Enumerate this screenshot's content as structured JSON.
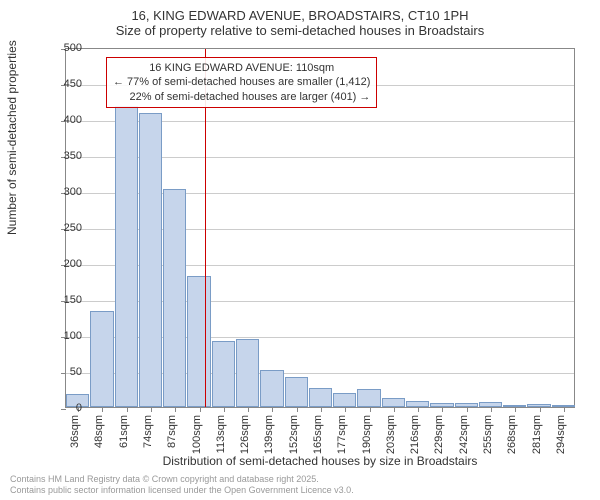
{
  "header": {
    "title": "16, KING EDWARD AVENUE, BROADSTAIRS, CT10 1PH",
    "subtitle": "Size of property relative to semi-detached houses in Broadstairs"
  },
  "chart": {
    "type": "histogram",
    "ylabel": "Number of semi-detached properties",
    "xlabel": "Distribution of semi-detached houses by size in Broadstairs",
    "ylim": [
      0,
      500
    ],
    "ytick_step": 50,
    "bar_fill": "#c6d5eb",
    "bar_stroke": "#7a9cc6",
    "grid_color": "#cccccc",
    "axis_color": "#888888",
    "background_color": "#ffffff",
    "x_start": 36,
    "x_step": 12.903,
    "bars": [
      {
        "label": "36sqm",
        "value": 18
      },
      {
        "label": "48sqm",
        "value": 133
      },
      {
        "label": "61sqm",
        "value": 418
      },
      {
        "label": "74sqm",
        "value": 408
      },
      {
        "label": "87sqm",
        "value": 303
      },
      {
        "label": "100sqm",
        "value": 182
      },
      {
        "label": "113sqm",
        "value": 92
      },
      {
        "label": "126sqm",
        "value": 95
      },
      {
        "label": "139sqm",
        "value": 52
      },
      {
        "label": "152sqm",
        "value": 42
      },
      {
        "label": "165sqm",
        "value": 26
      },
      {
        "label": "177sqm",
        "value": 20
      },
      {
        "label": "190sqm",
        "value": 25
      },
      {
        "label": "203sqm",
        "value": 12
      },
      {
        "label": "216sqm",
        "value": 9
      },
      {
        "label": "229sqm",
        "value": 5
      },
      {
        "label": "242sqm",
        "value": 5
      },
      {
        "label": "255sqm",
        "value": 7
      },
      {
        "label": "268sqm",
        "value": 1
      },
      {
        "label": "281sqm",
        "value": 4
      },
      {
        "label": "294sqm",
        "value": 2
      }
    ],
    "reference": {
      "value_sqm": 110,
      "line_color": "#cc0000"
    },
    "annotation": {
      "line1": "16 KING EDWARD AVENUE: 110sqm",
      "line2": "← 77% of semi-detached houses are smaller (1,412)",
      "line3": "22% of semi-detached houses are larger (401) →",
      "border_color": "#cc0000"
    }
  },
  "footer": {
    "line1": "Contains HM Land Registry data © Crown copyright and database right 2025.",
    "line2": "Contains public sector information licensed under the Open Government Licence v3.0."
  }
}
